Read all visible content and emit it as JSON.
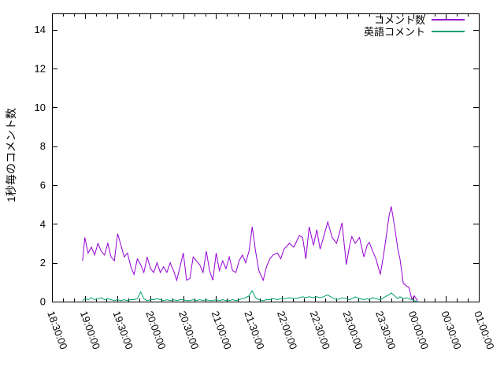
{
  "figure": {
    "background": "#ffffff",
    "border_color": "#000000",
    "text_color": "#000000"
  },
  "chart_data": {
    "type": "line",
    "title": "",
    "xlabel": "",
    "ylabel": "1秒毎のコメント数",
    "grid": false,
    "legend_position": "top-right",
    "x_axis": {
      "unit": "time (HH:MM:SS)",
      "range_minutes": [
        0,
        390
      ],
      "major_tick_interval_minutes": 30,
      "minor_tick_interval_minutes": 10,
      "tick_labels": [
        "18:30:00",
        "19:00:00",
        "19:30:00",
        "20:00:00",
        "20:30:00",
        "21:00:00",
        "21:30:00",
        "22:00:00",
        "22:30:00",
        "23:00:00",
        "23:30:00",
        "00:00:00",
        "00:30:00",
        "01:00:00"
      ],
      "tick_label_rotation_deg": 70
    },
    "y_axis": {
      "range": [
        0,
        14.84
      ],
      "ticks": [
        0,
        2,
        4,
        6,
        8,
        10,
        12,
        14
      ]
    },
    "x_minutes_after_1830": [
      28,
      30,
      33,
      36,
      39,
      42,
      45,
      48,
      51,
      54,
      57,
      60,
      63,
      66,
      69,
      72,
      75,
      78,
      81,
      84,
      87,
      90,
      93,
      96,
      99,
      102,
      105,
      108,
      111,
      114,
      117,
      120,
      123,
      126,
      129,
      132,
      135,
      138,
      141,
      144,
      147,
      150,
      153,
      156,
      159,
      162,
      165,
      168,
      171,
      174,
      177,
      180,
      183,
      186,
      189,
      193,
      196,
      199,
      202,
      206,
      209,
      212,
      217,
      221,
      226,
      229,
      232,
      235,
      239,
      242,
      245,
      248,
      252,
      256,
      260,
      263,
      265,
      269,
      272,
      274,
      277,
      281,
      285,
      288,
      290,
      293,
      296,
      300,
      303,
      306,
      308,
      310,
      313,
      316,
      318,
      321,
      324,
      326,
      329,
      331,
      334
    ],
    "series": [
      {
        "name": "コメント数",
        "color": "#9400d3",
        "values": [
          2.1,
          3.3,
          2.5,
          2.8,
          2.4,
          3.0,
          2.6,
          2.4,
          3.0,
          2.3,
          2.1,
          3.5,
          2.9,
          2.3,
          2.5,
          1.8,
          1.4,
          2.2,
          1.9,
          1.5,
          2.3,
          1.7,
          1.5,
          2.0,
          1.5,
          1.8,
          1.5,
          2.0,
          1.6,
          1.1,
          1.8,
          2.5,
          1.1,
          1.2,
          2.3,
          2.1,
          1.9,
          1.5,
          2.6,
          1.6,
          1.1,
          2.5,
          1.6,
          2.1,
          1.7,
          2.3,
          1.6,
          1.5,
          2.1,
          2.4,
          2.0,
          2.6,
          3.85,
          2.6,
          1.6,
          1.1,
          1.8,
          2.2,
          2.4,
          2.5,
          2.2,
          2.7,
          3.0,
          2.8,
          3.4,
          3.3,
          2.2,
          3.85,
          2.9,
          3.7,
          2.7,
          3.3,
          4.1,
          3.3,
          3.0,
          3.6,
          4.05,
          1.9,
          2.9,
          3.35,
          3.0,
          3.3,
          2.3,
          2.9,
          3.05,
          2.6,
          2.2,
          1.4,
          2.4,
          3.6,
          4.4,
          4.9,
          3.9,
          2.7,
          2.2,
          0.95,
          0.8,
          0.75,
          0.1,
          0.3,
          0.05
        ]
      },
      {
        "name": "英語コメント",
        "color": "#009e73",
        "values": [
          0.05,
          0.15,
          0.1,
          0.2,
          0.1,
          0.15,
          0.2,
          0.1,
          0.15,
          0.1,
          0.05,
          0.1,
          0.05,
          0.1,
          0.05,
          0.1,
          0.1,
          0.15,
          0.5,
          0.15,
          0.05,
          0.1,
          0.1,
          0.15,
          0.1,
          0.05,
          0.1,
          0.05,
          0.1,
          0.05,
          0.1,
          0.1,
          0.05,
          0.05,
          0.1,
          0.05,
          0.1,
          0.05,
          0.1,
          0.05,
          0.05,
          0.1,
          0.05,
          0.1,
          0.05,
          0.05,
          0.1,
          0.05,
          0.1,
          0.15,
          0.2,
          0.3,
          0.55,
          0.2,
          0.1,
          0.05,
          0.1,
          0.1,
          0.15,
          0.1,
          0.15,
          0.15,
          0.2,
          0.15,
          0.2,
          0.25,
          0.2,
          0.25,
          0.2,
          0.25,
          0.2,
          0.25,
          0.35,
          0.2,
          0.1,
          0.15,
          0.2,
          0.15,
          0.1,
          0.15,
          0.25,
          0.15,
          0.1,
          0.15,
          0.1,
          0.2,
          0.15,
          0.1,
          0.2,
          0.3,
          0.35,
          0.45,
          0.3,
          0.15,
          0.25,
          0.15,
          0.2,
          0.15,
          0.1,
          0.05,
          0.0
        ]
      }
    ]
  }
}
